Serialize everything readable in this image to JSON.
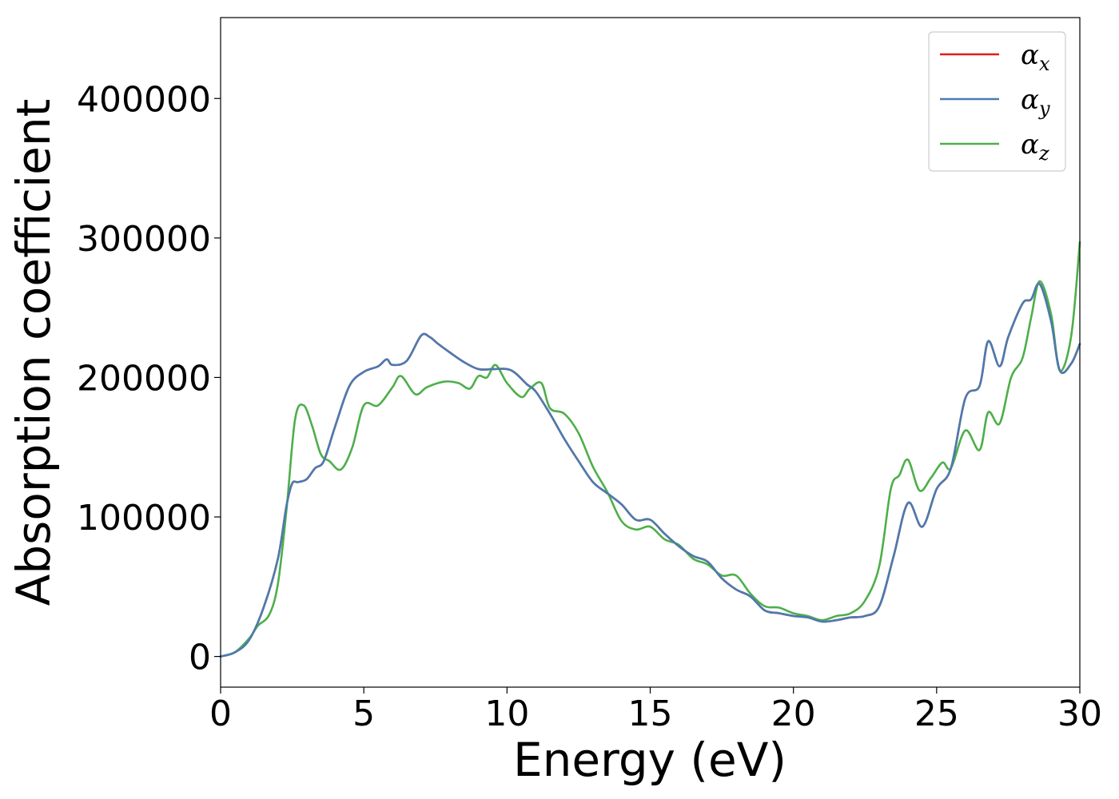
{
  "chart_data": {
    "type": "line",
    "xlabel": "Energy (eV)",
    "ylabel": "Absorption coefficient",
    "xlim": [
      0,
      30
    ],
    "ylim": [
      -22000,
      458000
    ],
    "xticks": [
      0,
      5,
      10,
      15,
      20,
      25,
      30
    ],
    "yticks": [
      0,
      100000,
      200000,
      300000,
      400000
    ],
    "grid": false,
    "legend_position": "top-right",
    "series": [
      {
        "name": "α_x",
        "symbol": "α",
        "subscript": "x",
        "color": "#e41a1c",
        "x": [
          0,
          0.5,
          1,
          1.5,
          2,
          2.3,
          2.5,
          2.7,
          3,
          3.3,
          3.6,
          4,
          4.5,
          5,
          5.5,
          5.8,
          6,
          6.5,
          7,
          7.3,
          7.6,
          8,
          8.5,
          9,
          9.5,
          10,
          10.3,
          10.7,
          11,
          11.5,
          12,
          12.5,
          13,
          13.5,
          14,
          14.5,
          15,
          15.5,
          16,
          16.5,
          17,
          17.5,
          18,
          18.5,
          19,
          19.5,
          20,
          20.5,
          21,
          21.5,
          22,
          22.5,
          23,
          23.5,
          24,
          24.5,
          25,
          25.5,
          26,
          26.5,
          26.8,
          27.2,
          27.5,
          28,
          28.3,
          28.6,
          29,
          29.3,
          29.7,
          30
        ],
        "values": [
          0,
          3000,
          12000,
          35000,
          70000,
          108000,
          124000,
          125000,
          127000,
          135000,
          140000,
          165000,
          194000,
          204000,
          208000,
          213000,
          209000,
          212000,
          230000,
          229000,
          224000,
          218000,
          211000,
          206000,
          206000,
          206000,
          203000,
          195000,
          190000,
          174000,
          156000,
          140000,
          125000,
          117000,
          109000,
          98000,
          98000,
          88000,
          79000,
          72000,
          68000,
          56000,
          48000,
          43000,
          33000,
          31000,
          29000,
          28000,
          25000,
          26000,
          28000,
          29000,
          36000,
          72000,
          110000,
          93000,
          120000,
          135000,
          185000,
          194000,
          226000,
          208000,
          229000,
          253000,
          256000,
          267000,
          240000,
          205000,
          210000,
          224000
        ]
      },
      {
        "name": "α_y",
        "symbol": "α",
        "subscript": "y",
        "color": "#4a7bb0",
        "x": [
          0,
          0.5,
          1,
          1.5,
          2,
          2.3,
          2.5,
          2.7,
          3,
          3.3,
          3.6,
          4,
          4.5,
          5,
          5.5,
          5.8,
          6,
          6.5,
          7,
          7.3,
          7.6,
          8,
          8.5,
          9,
          9.5,
          10,
          10.3,
          10.7,
          11,
          11.5,
          12,
          12.5,
          13,
          13.5,
          14,
          14.5,
          15,
          15.5,
          16,
          16.5,
          17,
          17.5,
          18,
          18.5,
          19,
          19.5,
          20,
          20.5,
          21,
          21.5,
          22,
          22.5,
          23,
          23.5,
          24,
          24.5,
          25,
          25.5,
          26,
          26.5,
          26.8,
          27.2,
          27.5,
          28,
          28.3,
          28.6,
          29,
          29.3,
          29.7,
          30
        ],
        "values": [
          0,
          3000,
          12000,
          35000,
          70000,
          108000,
          124000,
          125000,
          127000,
          135000,
          140000,
          165000,
          194000,
          204000,
          208000,
          213000,
          209000,
          212000,
          230000,
          229000,
          224000,
          218000,
          211000,
          206000,
          206000,
          206000,
          203000,
          195000,
          190000,
          174000,
          156000,
          140000,
          125000,
          117000,
          109000,
          98000,
          98000,
          88000,
          79000,
          72000,
          68000,
          56000,
          48000,
          43000,
          33000,
          31000,
          29000,
          28000,
          25000,
          26000,
          28000,
          29000,
          36000,
          72000,
          110000,
          93000,
          120000,
          135000,
          185000,
          194000,
          226000,
          208000,
          229000,
          253000,
          256000,
          267000,
          240000,
          205000,
          210000,
          224000
        ]
      },
      {
        "name": "α_z",
        "symbol": "α",
        "subscript": "z",
        "color": "#4daf4a",
        "x": [
          0,
          0.5,
          1,
          1.3,
          1.7,
          2,
          2.3,
          2.6,
          2.9,
          3.2,
          3.5,
          3.8,
          4.2,
          4.6,
          5,
          5.5,
          6,
          6.3,
          6.8,
          7.2,
          7.8,
          8.3,
          8.7,
          9,
          9.3,
          9.6,
          10,
          10.5,
          10.8,
          11.2,
          11.5,
          12,
          12.5,
          13,
          13.5,
          14,
          14.5,
          15,
          15.5,
          16,
          16.5,
          17,
          17.5,
          18,
          18.5,
          19,
          19.5,
          20,
          20.5,
          21,
          21.5,
          22,
          22.5,
          23,
          23.4,
          23.7,
          24,
          24.4,
          24.8,
          25.2,
          25.5,
          26,
          26.5,
          26.8,
          27.2,
          27.6,
          28,
          28.3,
          28.6,
          29,
          29.3,
          29.7,
          30
        ],
        "values": [
          0,
          3000,
          13000,
          22000,
          30000,
          52000,
          105000,
          170000,
          180000,
          165000,
          145000,
          140000,
          134000,
          150000,
          180000,
          180000,
          193000,
          201000,
          188000,
          193000,
          197000,
          196000,
          192000,
          201000,
          200000,
          209000,
          196000,
          186000,
          192000,
          196000,
          178000,
          174000,
          160000,
          136000,
          118000,
          97000,
          91000,
          93000,
          84000,
          80000,
          70000,
          66000,
          58000,
          58000,
          45000,
          36000,
          35000,
          31000,
          29000,
          26000,
          29000,
          31000,
          40000,
          65000,
          120000,
          130000,
          141000,
          119000,
          128000,
          139000,
          135000,
          162000,
          148000,
          175000,
          167000,
          200000,
          214000,
          243000,
          269000,
          245000,
          205000,
          230000,
          297000
        ]
      }
    ]
  }
}
